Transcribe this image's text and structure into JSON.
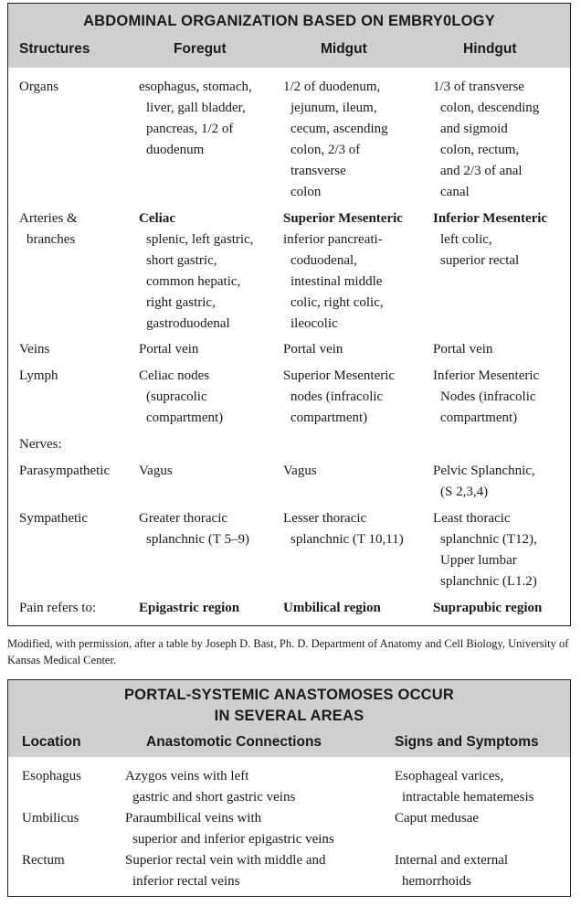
{
  "table1": {
    "title": "ABDOMINAL ORGANIZATION BASED ON EMBRY0LOGY",
    "headers": [
      "Structures",
      "Foregut",
      "Midgut",
      "Hindgut"
    ],
    "rows": {
      "organs": {
        "label": "Organs",
        "foregut": [
          "esophagus, stomach,",
          "liver, gall bladder,",
          "pancreas, 1/2 of",
          "duodenum"
        ],
        "midgut": [
          "1/2 of duodenum,",
          "jejunum, ileum,",
          "cecum, ascending",
          "colon, 2/3 of",
          "transverse",
          "colon"
        ],
        "hindgut": [
          "1/3 of transverse",
          "colon, descending",
          "and sigmoid",
          "colon, rectum,",
          "and 2/3 of anal",
          "canal"
        ]
      },
      "arteries": {
        "label": [
          "Arteries &",
          "branches"
        ],
        "foregut": [
          "Celiac",
          "splenic, left gastric,",
          "short gastric,",
          "common  hepatic,",
          "right gastric,",
          "gastroduodenal"
        ],
        "midgut": [
          "Superior Mesenteric",
          "inferior pancreati-",
          "coduodenal,",
          "intestinal middle",
          "colic, right colic,",
          "ileocolic"
        ],
        "hindgut": [
          "Inferior Mesenteric",
          "left colic,",
          "superior rectal"
        ]
      },
      "veins": {
        "label": "Veins",
        "foregut": "Portal vein",
        "midgut": "Portal vein",
        "hindgut": "Portal vein"
      },
      "lymph": {
        "label": "Lymph",
        "foregut": [
          "Celiac nodes",
          "(supracolic",
          "compartment)"
        ],
        "midgut": [
          "Superior Mesenteric",
          "nodes (infracolic",
          "compartment)"
        ],
        "hindgut": [
          "Inferior Mesenteric",
          "Nodes  (infracolic",
          "compartment)"
        ]
      },
      "nerves": {
        "label": "Nerves:"
      },
      "parasympathetic": {
        "label": "Parasympathetic",
        "foregut": "Vagus",
        "midgut": "Vagus",
        "hindgut": [
          "Pelvic Splanchnic,",
          "(S 2,3,4)"
        ]
      },
      "sympathetic": {
        "label": "Sympathetic",
        "foregut": [
          "Greater thoracic",
          "splanchnic (T 5–9)"
        ],
        "midgut": [
          "Lesser thoracic",
          "splanchnic (T 10,11)"
        ],
        "hindgut": [
          "Least thoracic",
          "splanchnic (T12),",
          "Upper lumbar",
          "splanchnic (L1.2)"
        ]
      },
      "pain": {
        "label": "Pain refers to:",
        "foregut": "Epigastric region",
        "midgut": "Umbilical region",
        "hindgut": "Suprapubic region"
      }
    }
  },
  "note": "Modified, with permission, after a table by Joseph D. Bast, Ph. D. Department of Anatomy and Cell Biology, University of Kansas Medical Center.",
  "table2": {
    "title_line1": "PORTAL-SYSTEMIC ANASTOMOSES OCCUR",
    "title_line2": "IN SEVERAL AREAS",
    "headers": [
      "Location",
      "Anastomotic Connections",
      "Signs and Symptoms"
    ],
    "rows": [
      {
        "location": "Esophagus",
        "connections": [
          "Azygos veins with left",
          "gastric and short gastric veins"
        ],
        "signs": [
          "Esophageal varices,",
          "intractable hematemesis"
        ]
      },
      {
        "location": "Umbilicus",
        "connections": [
          "Paraumbilical veins with",
          "superior and inferior epigastric veins"
        ],
        "signs": [
          "Caput medusae"
        ]
      },
      {
        "location": "Rectum",
        "connections": [
          "Superior rectal vein with middle and",
          "inferior rectal veins"
        ],
        "signs": [
          "Internal and external",
          "hemorrhoids"
        ]
      }
    ]
  }
}
